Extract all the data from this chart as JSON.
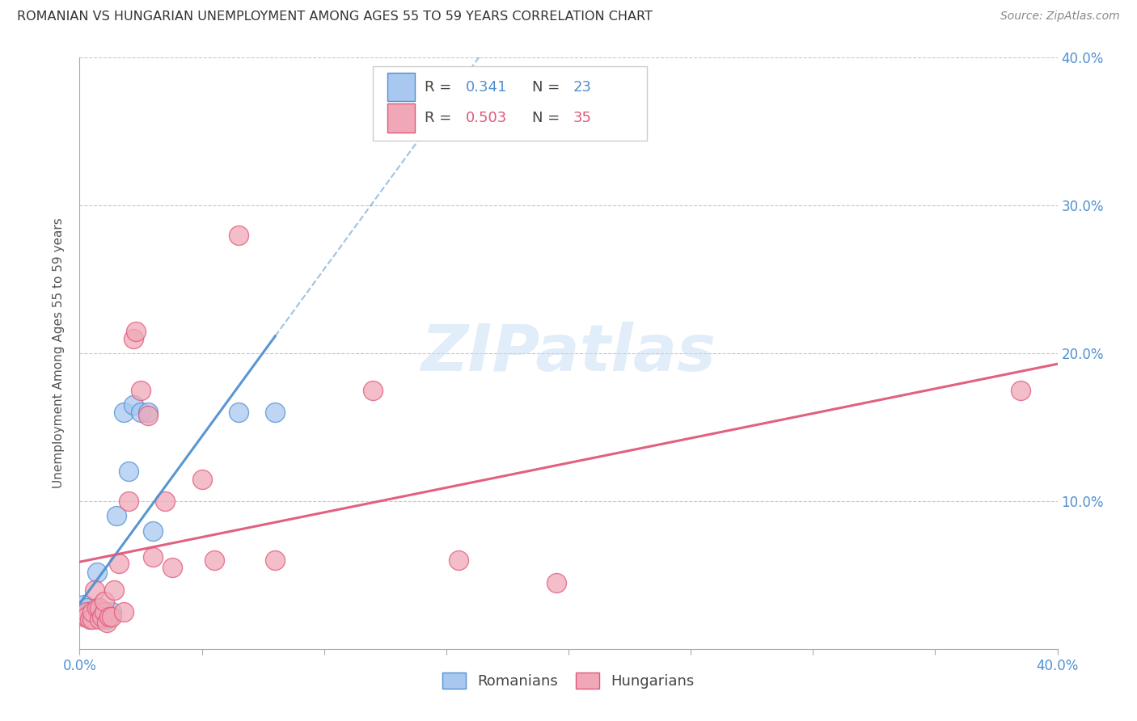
{
  "title": "ROMANIAN VS HUNGARIAN UNEMPLOYMENT AMONG AGES 55 TO 59 YEARS CORRELATION CHART",
  "source": "Source: ZipAtlas.com",
  "ylabel_label": "Unemployment Among Ages 55 to 59 years",
  "xlim": [
    0.0,
    0.4
  ],
  "ylim": [
    0.0,
    0.4
  ],
  "grid_color": "#c8c8c8",
  "background_color": "#ffffff",
  "romanian_color": "#a8c8f0",
  "hungarian_color": "#f0a8b8",
  "romanian_line_color": "#5090d0",
  "hungarian_line_color": "#e05878",
  "r_romanian": 0.341,
  "n_romanian": 23,
  "r_hungarian": 0.503,
  "n_hungarian": 35,
  "watermark": "ZIPatlas",
  "romanians_x": [
    0.002,
    0.003,
    0.004,
    0.005,
    0.005,
    0.006,
    0.007,
    0.007,
    0.008,
    0.009,
    0.01,
    0.011,
    0.012,
    0.013,
    0.015,
    0.018,
    0.02,
    0.022,
    0.025,
    0.028,
    0.03,
    0.065,
    0.08
  ],
  "romanians_y": [
    0.03,
    0.028,
    0.025,
    0.025,
    0.022,
    0.025,
    0.022,
    0.052,
    0.025,
    0.022,
    0.022,
    0.02,
    0.022,
    0.025,
    0.09,
    0.16,
    0.12,
    0.165,
    0.16,
    0.16,
    0.08,
    0.16,
    0.16
  ],
  "hungarians_x": [
    0.002,
    0.003,
    0.003,
    0.004,
    0.005,
    0.005,
    0.006,
    0.007,
    0.008,
    0.008,
    0.009,
    0.01,
    0.01,
    0.011,
    0.012,
    0.013,
    0.014,
    0.016,
    0.018,
    0.02,
    0.022,
    0.023,
    0.025,
    0.028,
    0.03,
    0.035,
    0.038,
    0.05,
    0.055,
    0.065,
    0.08,
    0.12,
    0.155,
    0.195,
    0.385
  ],
  "hungarians_y": [
    0.022,
    0.025,
    0.022,
    0.02,
    0.02,
    0.025,
    0.04,
    0.028,
    0.02,
    0.028,
    0.022,
    0.025,
    0.032,
    0.018,
    0.022,
    0.022,
    0.04,
    0.058,
    0.025,
    0.1,
    0.21,
    0.215,
    0.175,
    0.158,
    0.062,
    0.1,
    0.055,
    0.115,
    0.06,
    0.28,
    0.06,
    0.175,
    0.06,
    0.045,
    0.175
  ]
}
